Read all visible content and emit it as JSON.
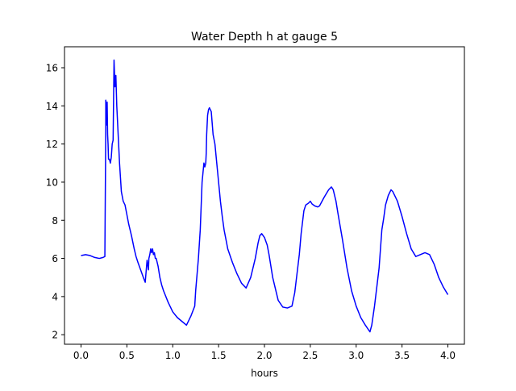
{
  "chart_data": {
    "type": "line",
    "title": "Water Depth h at gauge 5",
    "xlabel": "hours",
    "ylabel": "",
    "xlim": [
      -0.18,
      4.18
    ],
    "ylim": [
      1.5,
      17.1
    ],
    "xticks": [
      0.0,
      0.5,
      1.0,
      1.5,
      2.0,
      2.5,
      3.0,
      3.5,
      4.0
    ],
    "xtick_labels": [
      "0.0",
      "0.5",
      "1.0",
      "1.5",
      "2.0",
      "2.5",
      "3.0",
      "3.5",
      "4.0"
    ],
    "yticks": [
      2,
      4,
      6,
      8,
      10,
      12,
      14,
      16
    ],
    "ytick_labels": [
      "2",
      "4",
      "6",
      "8",
      "10",
      "12",
      "14",
      "16"
    ],
    "grid": false,
    "series": [
      {
        "color": "#0000ff",
        "x": [
          0.0,
          0.05,
          0.1,
          0.15,
          0.2,
          0.24,
          0.26,
          0.27,
          0.27,
          0.28,
          0.285,
          0.29,
          0.295,
          0.3,
          0.31,
          0.32,
          0.33,
          0.34,
          0.35,
          0.36,
          0.37,
          0.38,
          0.385,
          0.39,
          0.395,
          0.4,
          0.41,
          0.42,
          0.44,
          0.46,
          0.48,
          0.5,
          0.52,
          0.55,
          0.58,
          0.6,
          0.62,
          0.65,
          0.68,
          0.7,
          0.72,
          0.735,
          0.74,
          0.75,
          0.76,
          0.77,
          0.78,
          0.79,
          0.8,
          0.81,
          0.82,
          0.84,
          0.86,
          0.88,
          0.9,
          0.95,
          1.0,
          1.05,
          1.1,
          1.15,
          1.2,
          1.24,
          1.25,
          1.28,
          1.3,
          1.32,
          1.34,
          1.35,
          1.36,
          1.365,
          1.37,
          1.38,
          1.39,
          1.4,
          1.42,
          1.44,
          1.46,
          1.48,
          1.5,
          1.52,
          1.54,
          1.56,
          1.58,
          1.6,
          1.65,
          1.7,
          1.75,
          1.8,
          1.85,
          1.9,
          1.93,
          1.95,
          1.97,
          2.0,
          2.03,
          2.05,
          2.07,
          2.09,
          2.12,
          2.15,
          2.2,
          2.25,
          2.3,
          2.33,
          2.35,
          2.38,
          2.4,
          2.43,
          2.45,
          2.48,
          2.5,
          2.52,
          2.55,
          2.58,
          2.6,
          2.65,
          2.7,
          2.73,
          2.75,
          2.78,
          2.8,
          2.85,
          2.9,
          2.95,
          3.0,
          3.05,
          3.1,
          3.15,
          3.17,
          3.2,
          3.22,
          3.25,
          3.28,
          3.3,
          3.32,
          3.35,
          3.38,
          3.4,
          3.45,
          3.5,
          3.55,
          3.6,
          3.65,
          3.7,
          3.75,
          3.8,
          3.85,
          3.9,
          3.95,
          4.0
        ],
        "y": [
          6.15,
          6.2,
          6.15,
          6.05,
          6.0,
          6.05,
          6.1,
          12.8,
          14.3,
          13.0,
          14.2,
          12.5,
          12.0,
          11.2,
          11.2,
          11.0,
          11.3,
          12.0,
          12.2,
          16.4,
          15.0,
          15.6,
          14.8,
          14.0,
          13.5,
          13.0,
          12.0,
          11.0,
          9.5,
          9.0,
          8.8,
          8.3,
          7.8,
          7.2,
          6.5,
          6.1,
          5.8,
          5.4,
          5.0,
          4.75,
          5.9,
          5.4,
          6.0,
          6.2,
          6.5,
          6.3,
          6.5,
          6.2,
          6.3,
          6.0,
          6.0,
          5.6,
          5.0,
          4.6,
          4.3,
          3.7,
          3.2,
          2.9,
          2.7,
          2.5,
          3.0,
          3.5,
          4.3,
          6.0,
          7.5,
          10.0,
          11.0,
          10.8,
          11.0,
          11.5,
          12.5,
          13.5,
          13.8,
          13.9,
          13.7,
          12.5,
          12.0,
          11.0,
          10.0,
          9.0,
          8.2,
          7.5,
          7.0,
          6.5,
          5.8,
          5.2,
          4.7,
          4.45,
          5.0,
          6.0,
          6.8,
          7.2,
          7.3,
          7.1,
          6.7,
          6.2,
          5.6,
          5.0,
          4.4,
          3.8,
          3.45,
          3.4,
          3.5,
          4.2,
          5.0,
          6.2,
          7.3,
          8.5,
          8.8,
          8.9,
          9.0,
          8.85,
          8.75,
          8.7,
          8.75,
          9.2,
          9.6,
          9.75,
          9.6,
          9.0,
          8.4,
          7.0,
          5.5,
          4.3,
          3.5,
          2.9,
          2.5,
          2.15,
          2.5,
          3.5,
          4.3,
          5.5,
          7.5,
          8.1,
          8.8,
          9.3,
          9.6,
          9.5,
          9.0,
          8.2,
          7.3,
          6.5,
          6.1,
          6.2,
          6.3,
          6.2,
          5.7,
          5.0,
          4.5,
          4.1
        ]
      }
    ]
  }
}
